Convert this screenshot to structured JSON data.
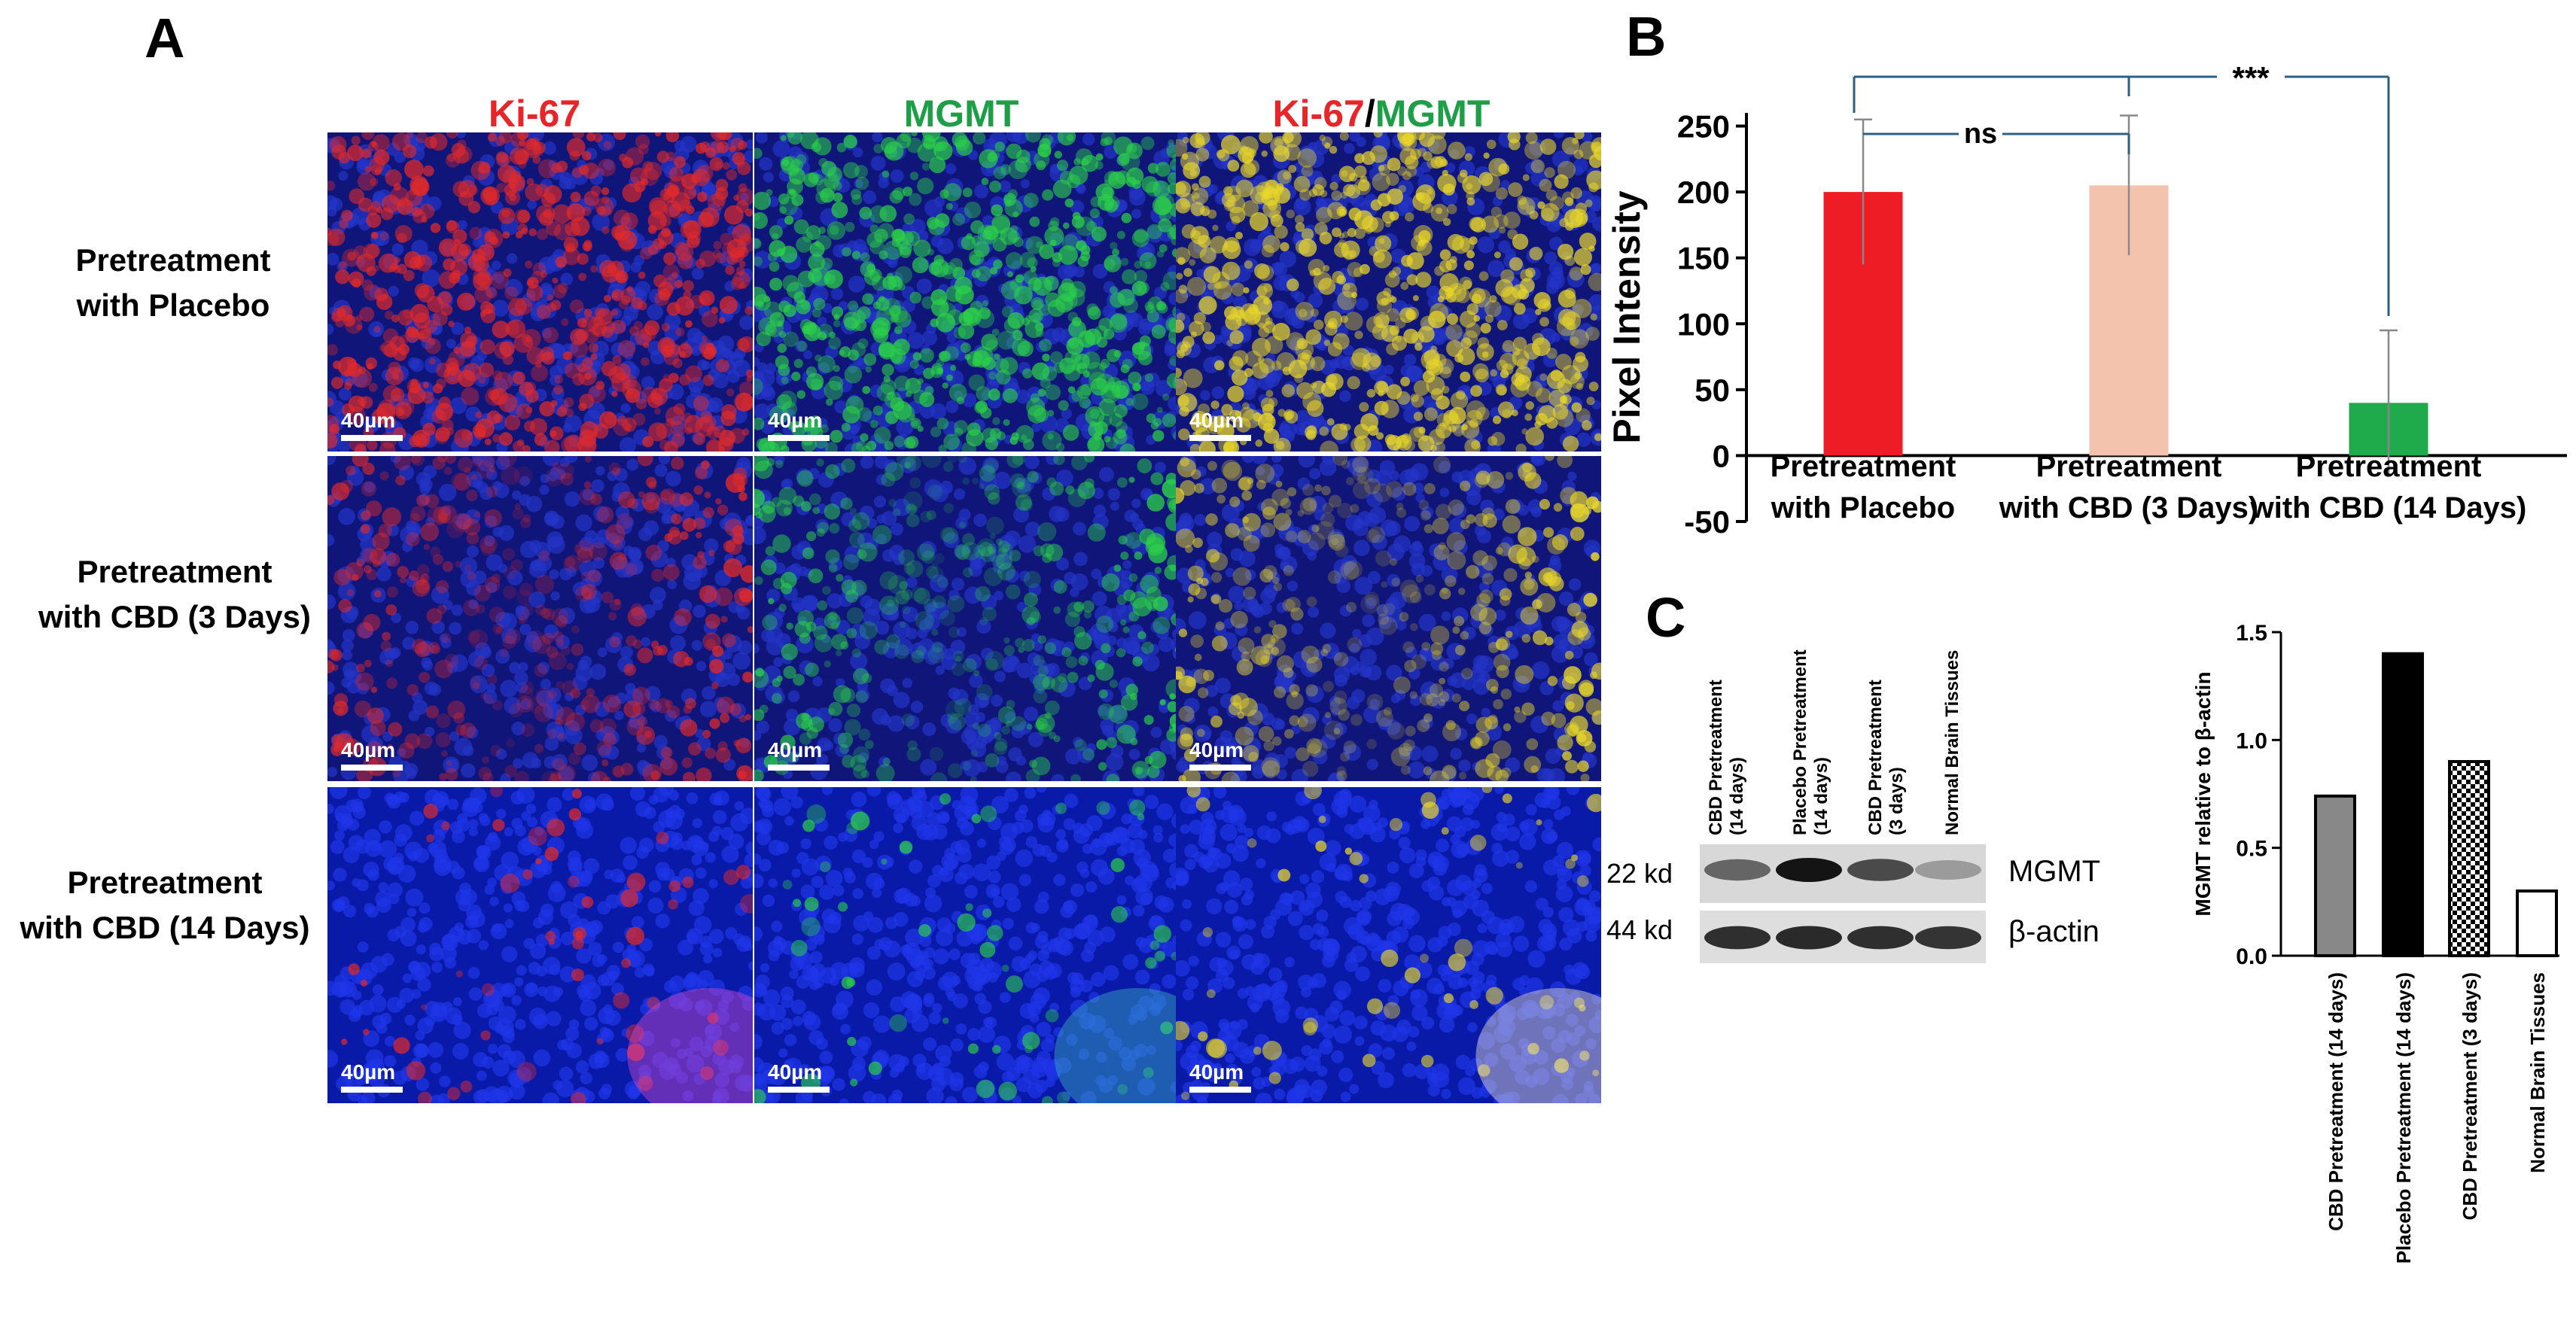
{
  "panel_a": {
    "letter": "A",
    "columns": [
      {
        "part1": "Ki-67",
        "part2": ""
      },
      {
        "part1": "",
        "part2": "MGMT"
      },
      {
        "part1": "Ki-67",
        "sep": "/",
        "part2": "MGMT"
      }
    ],
    "rows": [
      {
        "line1": "Pretreatment",
        "line2": "with Placebo"
      },
      {
        "line1": "Pretreatment",
        "line2": "with CBD (3 Days)"
      },
      {
        "line1": "Pretreatment",
        "line2": "with CBD (14 Days)"
      }
    ],
    "scale_bar": "40µm",
    "colors": {
      "ki67": "#e8262a",
      "mgmt": "#1f9e48",
      "dapi": "#1a2bd0"
    }
  },
  "panel_b": {
    "letter": "B",
    "ylabel": "Pixel Intensity",
    "significance": {
      "ns": "ns",
      "stars": "***"
    },
    "chart_data": {
      "type": "bar",
      "categories": [
        {
          "line1": "Pretreatment",
          "line2": "with Placebo"
        },
        {
          "line1": "Pretreatment",
          "line2": "with CBD (3 Days)"
        },
        {
          "line1": "Pretreatment",
          "line2": "with CBD (14 Days)"
        }
      ],
      "values": [
        200,
        205,
        40
      ],
      "errors": [
        55,
        53,
        55
      ],
      "colors": [
        "#ee1c25",
        "#f4c3ae",
        "#1faa4b"
      ],
      "ylim": [
        -50,
        260
      ],
      "yticks": [
        -50,
        0,
        50,
        100,
        150,
        200,
        250
      ]
    }
  },
  "panel_c": {
    "letter": "C",
    "lanes": [
      {
        "line1": "CBD Pretreatment",
        "line2": "(14 days)"
      },
      {
        "line1": "Placebo Pretreatment",
        "line2": "(14 days)"
      },
      {
        "line1": "CBD Pretreatment",
        "line2": "(3 days)"
      },
      {
        "line1": "Normal Brain Tissues",
        "line2": ""
      }
    ],
    "bands": [
      {
        "kd": "22 kd",
        "protein": "MGMT",
        "intensity": [
          0.55,
          1.0,
          0.7,
          0.25
        ]
      },
      {
        "kd": "44 kd",
        "protein": "β-actin",
        "intensity": [
          0.85,
          0.88,
          0.85,
          0.82
        ]
      }
    ],
    "chart_data": {
      "type": "bar",
      "ylabel": "MGMT relative to β-actin",
      "categories": [
        "CBD Pretreatment  (14 days)",
        "Placebo Pretreatment  (14 days)",
        "CBD Pretreatment  (3 days)",
        "Normal Brain Tissues"
      ],
      "values": [
        0.74,
        1.4,
        0.9,
        0.3
      ],
      "fills": [
        "gray",
        "black",
        "checker",
        "white"
      ],
      "ylim": [
        0,
        1.5
      ],
      "yticks": [
        "0.0",
        "0.5",
        "1.0",
        "1.5"
      ]
    }
  }
}
